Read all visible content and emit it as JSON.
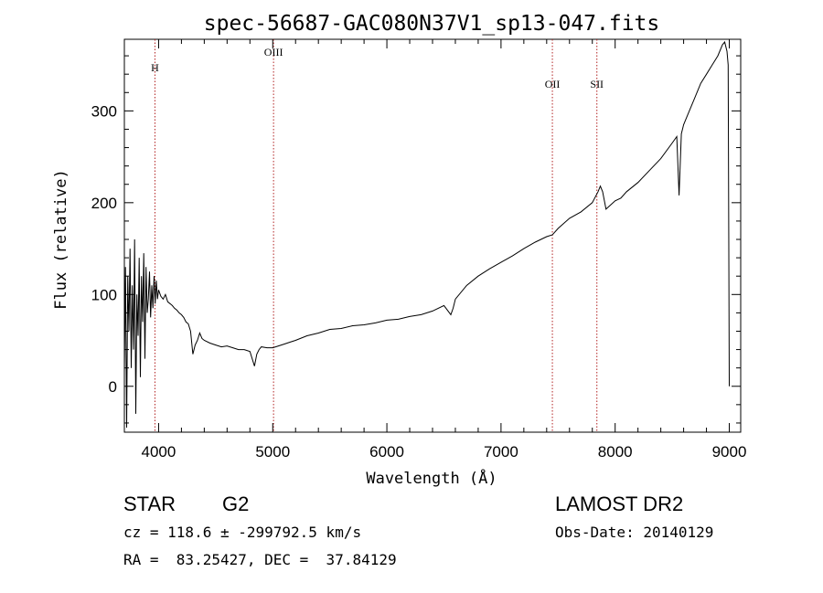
{
  "chart_data": {
    "type": "line",
    "title": "spec-56687-GAC080N37V1_sp13-047.fits",
    "xlabel": "Wavelength (Å)",
    "ylabel": "Flux (relative)",
    "xlim": [
      3700,
      9100
    ],
    "ylim": [
      -50,
      378
    ],
    "x_ticks": [
      4000,
      5000,
      6000,
      7000,
      8000,
      9000
    ],
    "y_ticks": [
      0,
      100,
      200,
      300
    ],
    "x_tick_labels": [
      "4000",
      "5000",
      "6000",
      "7000",
      "8000",
      "9000"
    ],
    "y_tick_labels": [
      "0",
      "100",
      "200",
      "300"
    ],
    "grid": false,
    "line_color": "#000000",
    "marker_color": "#b22222",
    "spectrum": {
      "x": [
        3700,
        3710,
        3720,
        3730,
        3740,
        3750,
        3760,
        3770,
        3780,
        3790,
        3800,
        3810,
        3820,
        3830,
        3840,
        3850,
        3860,
        3870,
        3880,
        3890,
        3900,
        3910,
        3920,
        3930,
        3940,
        3950,
        3960,
        3970,
        3980,
        3990,
        4000,
        4020,
        4040,
        4060,
        4080,
        4100,
        4120,
        4140,
        4160,
        4180,
        4200,
        4220,
        4240,
        4260,
        4280,
        4300,
        4320,
        4340,
        4360,
        4380,
        4400,
        4450,
        4500,
        4550,
        4600,
        4650,
        4700,
        4750,
        4800,
        4840,
        4860,
        4880,
        4900,
        4950,
        5000,
        5050,
        5100,
        5150,
        5200,
        5300,
        5400,
        5500,
        5600,
        5700,
        5800,
        5900,
        6000,
        6100,
        6200,
        6300,
        6400,
        6500,
        6560,
        6580,
        6600,
        6700,
        6800,
        6900,
        7000,
        7100,
        7200,
        7300,
        7400,
        7450,
        7500,
        7600,
        7700,
        7800,
        7850,
        7870,
        7890,
        7920,
        8000,
        8050,
        8100,
        8200,
        8300,
        8400,
        8500,
        8540,
        8560,
        8580,
        8600,
        8650,
        8700,
        8750,
        8800,
        8850,
        8900,
        8940,
        8960,
        8980,
        8990,
        9000
      ],
      "y": [
        15,
        130,
        -45,
        120,
        60,
        150,
        20,
        110,
        40,
        160,
        -30,
        100,
        55,
        140,
        10,
        120,
        70,
        145,
        30,
        130,
        80,
        95,
        125,
        75,
        110,
        85,
        120,
        90,
        115,
        95,
        105,
        98,
        95,
        100,
        92,
        90,
        88,
        85,
        83,
        80,
        78,
        75,
        70,
        68,
        60,
        35,
        45,
        50,
        58,
        52,
        50,
        47,
        45,
        43,
        44,
        42,
        40,
        40,
        38,
        22,
        35,
        40,
        43,
        42,
        42,
        44,
        46,
        48,
        50,
        55,
        58,
        62,
        63,
        66,
        67,
        69,
        72,
        73,
        76,
        78,
        82,
        88,
        78,
        85,
        95,
        110,
        120,
        128,
        135,
        142,
        150,
        157,
        163,
        165,
        172,
        183,
        190,
        200,
        212,
        218,
        212,
        193,
        202,
        205,
        212,
        222,
        235,
        248,
        265,
        272,
        208,
        275,
        285,
        300,
        315,
        330,
        340,
        350,
        360,
        372,
        375,
        365,
        350,
        0
      ]
    },
    "annotations": [
      {
        "label": "H",
        "x": 3968
      },
      {
        "label": "OIII",
        "x": 5007
      },
      {
        "label": "OII",
        "x": 7450
      },
      {
        "label": "SII",
        "x": 7840
      }
    ]
  },
  "info": {
    "class_label": "STAR",
    "subclass_label": "G2",
    "survey_label": "LAMOST DR2",
    "redshift_line": "cz = 118.6 ± -299792.5 km/s",
    "obs_date_line": "Obs-Date: 20140129",
    "coords_line": "RA =  83.25427, DEC =  37.84129"
  }
}
